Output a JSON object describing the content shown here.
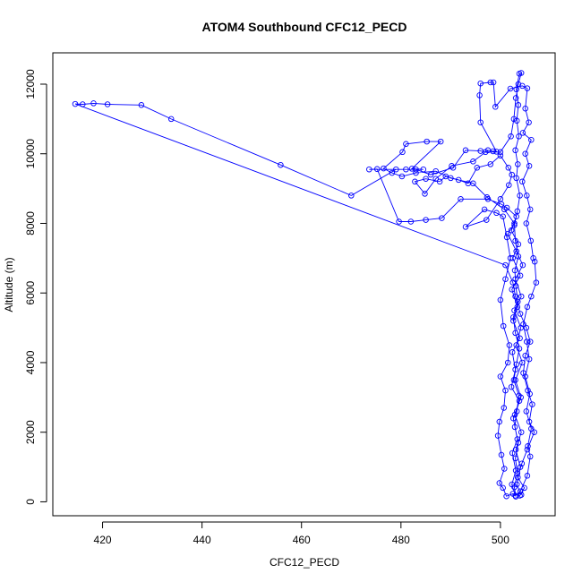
{
  "chart_data": {
    "type": "scatter",
    "title": "ATOM4 Southbound CFC12_PECD",
    "xlabel": "CFC12_PECD",
    "ylabel": "Altitude (m)",
    "xlim": [
      410,
      511
    ],
    "ylim": [
      -400,
      12900
    ],
    "xticks": [
      420,
      440,
      460,
      480,
      500
    ],
    "yticks": [
      0,
      2000,
      4000,
      6000,
      8000,
      10000,
      12000
    ],
    "grid": false,
    "point_style": "open-circle",
    "connected": true,
    "colors": {
      "series": "#0000ff",
      "axis": "#000000",
      "background": "#ffffff"
    },
    "series": [
      {
        "values_note_free": true,
        "points": [
          [
            503.1,
            150
          ],
          [
            502.8,
            420
          ],
          [
            503.4,
            820
          ],
          [
            503.0,
            1250
          ],
          [
            503.6,
            1700
          ],
          [
            502.9,
            2150
          ],
          [
            503.3,
            2600
          ],
          [
            503.7,
            3050
          ],
          [
            502.7,
            3500
          ],
          [
            503.2,
            3950
          ],
          [
            503.8,
            4400
          ],
          [
            503.0,
            4850
          ],
          [
            502.6,
            5300
          ],
          [
            503.5,
            5750
          ],
          [
            503.1,
            6200
          ],
          [
            502.9,
            6650
          ],
          [
            503.6,
            7050
          ],
          [
            503.0,
            7500
          ],
          [
            502.8,
            7950
          ],
          [
            503.4,
            8350
          ],
          [
            503.9,
            8800
          ],
          [
            503.2,
            9300
          ],
          [
            503.5,
            9700
          ],
          [
            503.0,
            10100
          ],
          [
            503.7,
            10500
          ],
          [
            503.3,
            10950
          ],
          [
            503.6,
            11400
          ],
          [
            503.2,
            11850
          ],
          [
            503.8,
            12300
          ],
          [
            504.2,
            12320
          ],
          [
            503.6,
            12000
          ],
          [
            503.1,
            11600
          ],
          [
            502.7,
            11000
          ],
          [
            502.1,
            10500
          ],
          [
            500.0,
            10050
          ],
          [
            497.0,
            10050
          ],
          [
            496.0,
            10080
          ],
          [
            493.0,
            10100
          ],
          [
            490.5,
            9600
          ],
          [
            486.0,
            9400
          ],
          [
            483.0,
            9550
          ],
          [
            479.0,
            9550
          ],
          [
            470.0,
            8800
          ],
          [
            455.8,
            9680
          ],
          [
            433.8,
            11000
          ],
          [
            427.8,
            11400
          ],
          [
            421.0,
            11420
          ],
          [
            418.2,
            11450
          ],
          [
            416.0,
            11420
          ],
          [
            414.5,
            11430
          ],
          [
            501.0,
            6800
          ],
          [
            502.5,
            6300
          ],
          [
            503.0,
            5900
          ],
          [
            504.0,
            5400
          ],
          [
            505.2,
            5000
          ],
          [
            506.0,
            4600
          ],
          [
            505.0,
            4200
          ],
          [
            504.6,
            3700
          ],
          [
            505.5,
            3200
          ],
          [
            506.4,
            2800
          ],
          [
            505.8,
            2300
          ],
          [
            506.8,
            2000
          ],
          [
            505.4,
            1500
          ],
          [
            504.3,
            1100
          ],
          [
            503.5,
            700
          ],
          [
            504.8,
            400
          ],
          [
            503.9,
            180
          ],
          [
            502.5,
            230
          ],
          [
            501.2,
            160
          ],
          [
            500.5,
            400
          ],
          [
            499.8,
            540
          ],
          [
            500.8,
            950
          ],
          [
            500.2,
            1350
          ],
          [
            499.5,
            1900
          ],
          [
            499.8,
            2300
          ],
          [
            500.7,
            2700
          ],
          [
            501.0,
            3200
          ],
          [
            500.0,
            3600
          ],
          [
            501.5,
            4000
          ],
          [
            501.8,
            4500
          ],
          [
            500.6,
            5050
          ],
          [
            500.0,
            5800
          ],
          [
            501.0,
            6400
          ],
          [
            502.0,
            7000
          ],
          [
            501.3,
            7600
          ],
          [
            500.5,
            8200
          ],
          [
            499.2,
            8300
          ],
          [
            496.8,
            8400
          ],
          [
            493.0,
            7900
          ],
          [
            497.2,
            8100
          ],
          [
            500.0,
            8700
          ],
          [
            501.7,
            9100
          ],
          [
            502.3,
            9400
          ],
          [
            501.6,
            9600
          ],
          [
            500.0,
            9950
          ],
          [
            498.0,
            9700
          ],
          [
            495.3,
            9600
          ],
          [
            493.5,
            9150
          ],
          [
            491.6,
            9250
          ],
          [
            489.0,
            9350
          ],
          [
            487.8,
            9200
          ],
          [
            485.0,
            9280
          ],
          [
            482.8,
            9200
          ],
          [
            484.8,
            8850
          ],
          [
            487.0,
            9280
          ],
          [
            490.2,
            9650
          ],
          [
            494.5,
            9780
          ],
          [
            497.5,
            10100
          ],
          [
            498.5,
            10070
          ],
          [
            499.2,
            10060
          ],
          [
            496.0,
            10900
          ],
          [
            495.8,
            11680
          ],
          [
            496.0,
            12020
          ],
          [
            498.0,
            12050
          ],
          [
            498.6,
            12050
          ],
          [
            499.0,
            11350
          ],
          [
            502.0,
            11870
          ],
          [
            504.4,
            11950
          ],
          [
            505.4,
            11880
          ],
          [
            505.0,
            11300
          ],
          [
            505.7,
            10900
          ],
          [
            504.5,
            10600
          ],
          [
            506.2,
            10400
          ],
          [
            505.0,
            10000
          ],
          [
            505.8,
            9650
          ],
          [
            504.4,
            9200
          ],
          [
            505.3,
            8800
          ],
          [
            506.0,
            8400
          ],
          [
            505.2,
            8000
          ],
          [
            506.1,
            7500
          ],
          [
            506.6,
            7000
          ],
          [
            506.9,
            6900
          ],
          [
            507.2,
            6300
          ],
          [
            506.2,
            5900
          ],
          [
            505.4,
            5600
          ],
          [
            504.6,
            5100
          ],
          [
            505.3,
            4600
          ],
          [
            505.8,
            4100
          ],
          [
            505.0,
            3600
          ],
          [
            505.9,
            3100
          ],
          [
            505.2,
            2600
          ],
          [
            506.2,
            2100
          ],
          [
            505.5,
            1600
          ],
          [
            506.0,
            1300
          ],
          [
            505.4,
            750
          ],
          [
            504.0,
            300
          ],
          [
            503.0,
            180
          ],
          [
            502.3,
            500
          ],
          [
            503.1,
            900
          ],
          [
            502.4,
            1400
          ],
          [
            503.4,
            1800
          ],
          [
            502.6,
            2400
          ],
          [
            503.8,
            2900
          ],
          [
            502.2,
            3300
          ],
          [
            503.0,
            3800
          ],
          [
            502.4,
            4300
          ],
          [
            503.9,
            4700
          ],
          [
            502.6,
            5200
          ],
          [
            503.4,
            5600
          ],
          [
            502.3,
            6100
          ],
          [
            504.0,
            6500
          ],
          [
            502.5,
            7000
          ],
          [
            503.6,
            7400
          ],
          [
            502.2,
            7800
          ],
          [
            503.2,
            8200
          ],
          [
            501.3,
            8450
          ],
          [
            500.2,
            8550
          ],
          [
            497.5,
            8700
          ],
          [
            492.0,
            8700
          ],
          [
            488.2,
            8150
          ],
          [
            485.0,
            8100
          ],
          [
            482.0,
            8050
          ],
          [
            479.6,
            8050
          ],
          [
            475.2,
            9560
          ],
          [
            473.6,
            9550
          ],
          [
            481.0,
            9550
          ],
          [
            484.5,
            9550
          ],
          [
            482.2,
            9570
          ],
          [
            488.0,
            10350
          ],
          [
            485.2,
            10350
          ],
          [
            481.0,
            10280
          ],
          [
            480.3,
            10050
          ],
          [
            476.5,
            9580
          ],
          [
            478.2,
            9450
          ],
          [
            480.2,
            9350
          ],
          [
            483.0,
            9450
          ],
          [
            487.0,
            9500
          ],
          [
            490.0,
            9300
          ],
          [
            494.5,
            9150
          ],
          [
            497.3,
            8750
          ],
          [
            500.8,
            8400
          ],
          [
            502.8,
            8000
          ],
          [
            501.5,
            7700
          ],
          [
            503.2,
            7200
          ],
          [
            504.5,
            6800
          ],
          [
            503.0,
            6400
          ],
          [
            504.2,
            5900
          ],
          [
            502.8,
            5500
          ],
          [
            504.1,
            5000
          ],
          [
            503.2,
            4500
          ],
          [
            504.4,
            4000
          ],
          [
            503.0,
            3500
          ],
          [
            504.1,
            3000
          ],
          [
            502.9,
            2500
          ],
          [
            504.2,
            2000
          ],
          [
            503.1,
            1500
          ],
          [
            504.0,
            1000
          ],
          [
            503.3,
            500
          ],
          [
            504.2,
            200
          ]
        ]
      }
    ]
  }
}
